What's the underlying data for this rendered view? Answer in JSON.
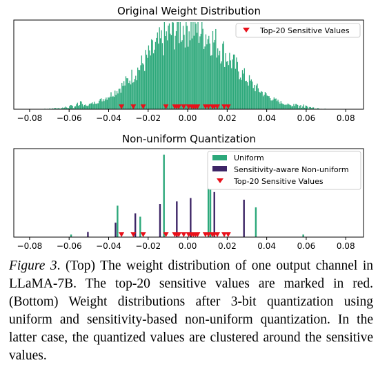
{
  "chart_data": [
    {
      "type": "bar",
      "title": "Original Weight Distribution",
      "xlabel": "",
      "ylabel": "",
      "xlim": [
        -0.088,
        0.089
      ],
      "xticks": [
        -0.08,
        -0.06,
        -0.04,
        -0.02,
        0.0,
        0.02,
        0.04,
        0.06,
        0.08
      ],
      "xtick_labels": [
        "−0.08",
        "−0.06",
        "−0.04",
        "−0.02",
        "0.00",
        "0.02",
        "0.04",
        "0.06",
        "0.08"
      ],
      "yticks_visible": false,
      "distribution": {
        "shape": "approximately normal histogram",
        "center": 0.0,
        "std_dev": 0.021,
        "range": [
          -0.078,
          0.07
        ],
        "bin_width": 0.0005,
        "peak_count_relative": 1.0
      },
      "series": [
        {
          "name": "",
          "kind": "histogram",
          "color": "#2ca87a"
        },
        {
          "name": "Top-20 Sensitive Values",
          "kind": "marker",
          "marker": "triangle-down",
          "color": "#e8101a",
          "x": [
            -0.0335,
            -0.0275,
            -0.0225,
            -0.011,
            -0.0065,
            -0.0055,
            -0.0045,
            -0.002,
            0.0005,
            0.002,
            0.003,
            0.004,
            0.005,
            0.009,
            0.0105,
            0.0125,
            0.0135,
            0.015,
            0.0185,
            0.0205
          ]
        }
      ],
      "legend": {
        "placement": "top-right",
        "entries": [
          "Top-20 Sensitive Values"
        ]
      }
    },
    {
      "type": "bar",
      "title": "Non-uniform Quantization",
      "xlabel": "",
      "ylabel": "",
      "xlim": [
        -0.088,
        0.089
      ],
      "xticks": [
        -0.08,
        -0.06,
        -0.04,
        -0.02,
        0.0,
        0.02,
        0.04,
        0.06,
        0.08
      ],
      "xtick_labels": [
        "−0.08",
        "−0.06",
        "−0.04",
        "−0.02",
        "0.00",
        "0.02",
        "0.04",
        "0.06",
        "0.08"
      ],
      "yticks_visible": false,
      "series": [
        {
          "name": "Uniform",
          "kind": "bar",
          "color": "#2ca87a",
          "x": [
            -0.059,
            -0.0355,
            -0.024,
            -0.012,
            0.0105,
            0.0115,
            0.0345,
            0.0585
          ],
          "values": [
            0.03,
            0.37,
            0.24,
            0.97,
            0.62,
            0.64,
            0.35,
            0.03
          ]
        },
        {
          "name": "Sensitivity-aware Non-uniform",
          "kind": "bar",
          "color": "#3d2566",
          "x": [
            -0.0505,
            -0.0365,
            -0.0265,
            -0.014,
            -0.0055,
            0.0015,
            0.0135,
            0.0285
          ],
          "values": [
            0.06,
            0.17,
            0.28,
            0.39,
            0.42,
            0.46,
            0.53,
            0.44
          ]
        },
        {
          "name": "Top-20 Sensitive Values",
          "kind": "marker",
          "marker": "triangle-down",
          "color": "#e8101a",
          "x": [
            -0.0335,
            -0.0275,
            -0.0225,
            -0.011,
            -0.0065,
            -0.0055,
            -0.0045,
            -0.002,
            0.0005,
            0.002,
            0.003,
            0.004,
            0.005,
            0.009,
            0.0105,
            0.0125,
            0.0135,
            0.015,
            0.0185,
            0.0205
          ]
        }
      ],
      "legend": {
        "placement": "top-right",
        "entries": [
          "Uniform",
          "Sensitivity-aware Non-uniform",
          "Top-20 Sensitive Values"
        ]
      }
    }
  ],
  "caption": {
    "label": "Figure 3",
    "text": ". (Top) The weight distribution of one output channel in LLaMA-7B. The top-20 sensitive values are marked in red. (Bottom) Weight distributions after 3-bit quantization using uniform and sensitivity-based non-uniform quantization. In the latter case, the quantized values are clustered around the sensitive values."
  }
}
